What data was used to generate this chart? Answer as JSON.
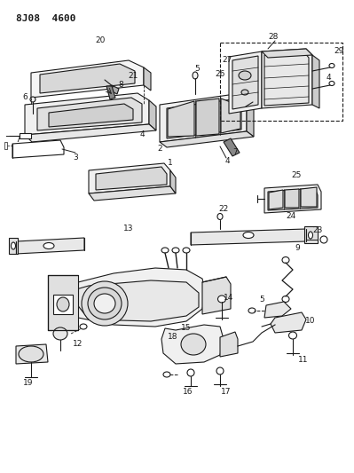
{
  "title": "8J08  4600",
  "bg_color": "#ffffff",
  "line_color": "#1a1a1a",
  "fig_width": 3.99,
  "fig_height": 5.33,
  "dpi": 100
}
